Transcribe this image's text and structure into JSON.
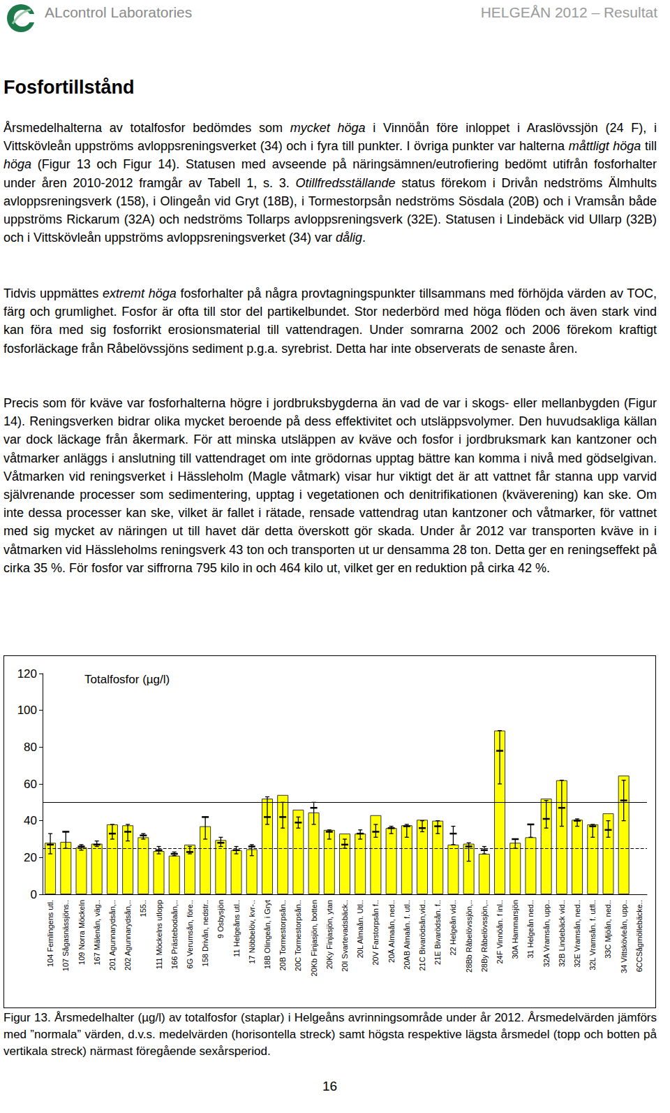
{
  "header": {
    "company": "ALcontrol Laboratories",
    "report": "HELGEÅN 2012 – Resultat"
  },
  "title": "Fosfortillstånd",
  "paragraphs": [
    [
      {
        "text": "Årsmedelhalterna av totalfosfor bedömdes som "
      },
      {
        "text": "mycket höga",
        "style": "italic"
      },
      {
        "text": " i Vinnöån före inloppet i Araslövssjön (24 F), i Vittskövleån uppströms avloppsreningsverket (34) och i fyra till punkter. I övriga punkter var halterna "
      },
      {
        "text": "måttligt höga",
        "style": "italic"
      },
      {
        "text": " till "
      },
      {
        "text": "höga",
        "style": "italic"
      },
      {
        "text": " (Figur 13 och Figur 14). Statusen med avseende på näringsämnen/eutrofiering bedömt utifrån fosforhalter under åren 2010-2012 framgår av Tabell 1, s. 3. "
      },
      {
        "text": "Otillfredsställande",
        "style": "italic"
      },
      {
        "text": " status förekom i Drivån nedströms Älmhults avloppsreningsverk (158), i Olingeån vid Gryt (18B), i Tormestorpsån nedströms Sösdala (20B) och i Vramsån både uppströms Rickarum (32A) och nedströms Tollarps avloppsreningsverk (32E). Statusen i Lindebäck vid Ullarp (32B) och i Vittskövleån uppströms avloppsreningsverket (34) var "
      },
      {
        "text": "dålig",
        "style": "italic"
      },
      {
        "text": "."
      }
    ],
    [
      {
        "text": "Tidvis uppmättes "
      },
      {
        "text": "extremt höga",
        "style": "italic"
      },
      {
        "text": " fosforhalter på några provtagningspunkter tillsammans med förhöjda värden av TOC, färg och grumlighet. Fosfor är ofta till stor del partikelbundet. Stor nederbörd med höga flöden och även stark vind kan föra med sig fosforrikt erosionsmaterial till vattendragen. Under somrarna 2002 och 2006 förekom kraftigt fosforläckage från Råbelövssjöns sediment p.g.a. syrebrist. Detta har inte observerats de senaste åren."
      }
    ],
    [
      {
        "text": "Precis som för kväve var fosforhalterna högre i jordbruksbygderna än vad de var i skogs- eller mellanbygden (Figur 14). Reningsverken bidrar olika mycket beroende på dess effektivitet och utsläppsvolymer. Den huvudsakliga källan var dock läckage från åkermark. För att minska utsläppen av kväve och fosfor i jordbruksmark kan kantzoner och våtmarker anläggs i anslutning till vattendraget om inte grödornas upptag bättre kan komma i nivå med gödselgivan. Våtmarken vid reningsverket i Hässleholm (Magle våtmark) visar hur viktigt det är att vattnet får stanna upp varvid självrenande processer som sedimentering, upptag i vegetationen och denitrifikationen (kväverening) kan ske. Om inte dessa processer kan ske, vilket är fallet i rätade, rensade vattendrag utan kantzoner och våtmarker, för vattnet med sig mycket av näringen ut till havet där detta överskott gör skada. Under år 2012 var transporten kväve in i våtmarken vid Hässleholms reningsverk 43 ton och transporten ut ur densamma 28 ton. Detta ger en reningseffekt på cirka 35 %. För fosfor var siffrorna 795 kilo in och 464 kilo ut, vilket ger en reduktion på cirka 42 %."
      }
    ]
  ],
  "chart_data": {
    "type": "bar",
    "title": "Totalfosfor (µg/l)",
    "categories": [
      "104 Femlingens utl.",
      "107 Sågasnässjöns..",
      "109 Norra Möckeln",
      "167 Mälenån, väg..",
      "201 Agunnarydsån,..",
      "202 Agunnarydsån,..",
      "155..",
      "111 Möckelns utlopp",
      "166 Prästebodaån,..",
      "6G Verumsån, före..",
      "158 Drivån, nedstr..",
      "9 Osbysjön",
      "11 Helgeåns utl..",
      "17 Nöbbelöv, kvr-..",
      "18B Olingeån, i Gryt",
      "20B Tormestorpsån..",
      "20C Tormestorpsån..",
      "20Kb Finjasjön, botten",
      "20Ky Finjasjön, ytan",
      "20I Svartevadsbäck..",
      "20L Almaån. Utl..",
      "20V Farstorpsån f..",
      "20Ä Almaån, ned..",
      "20AB Almaån. f. utl..",
      "21C Bivarödsån,vid..",
      "21E Bivarödsån. f..",
      "22 Helgeån vid..",
      "28Bb Råbelövssjön,..",
      "28By Råbelövssjön,..",
      "24F Vinnöån. f inl..",
      "30A Hammarsjön",
      "31 Helgeån ned..",
      "32A Vramsån, upp..",
      "32B Lindebäck vid..",
      "32E Vramsån, ned..",
      "32L Vramsån. f. utfl..",
      "33C Mjöån, ned..",
      "34 Vittskövleån, upp..",
      "6CCSågmöllebäcke.."
    ],
    "values": [
      28,
      28.5,
      25.5,
      27.5,
      38,
      37.5,
      31,
      23.5,
      21,
      27,
      37,
      29.5,
      24,
      24.5,
      52,
      54,
      46,
      44.5,
      35,
      33,
      33,
      43,
      36,
      37.5,
      40.5,
      40,
      27,
      27.5,
      22,
      89,
      28,
      31,
      52,
      62,
      40.5,
      38,
      44,
      64.5,
      null
    ],
    "normal_mean": [
      27,
      34,
      26,
      27,
      33,
      34,
      32,
      24,
      22,
      23,
      42,
      28,
      24,
      26,
      42,
      42,
      39,
      47,
      34,
      27,
      33,
      34,
      36,
      37,
      36,
      37,
      33,
      26,
      24,
      78,
      30,
      38,
      41,
      47,
      40,
      37,
      35,
      51,
      null
    ],
    "range_min": [
      22,
      25,
      24,
      26,
      30,
      29,
      30,
      22,
      21,
      22,
      30,
      26,
      22,
      21,
      38,
      36,
      36,
      38,
      30,
      25,
      30,
      31,
      33,
      31,
      34,
      33,
      27,
      18,
      22,
      60,
      25,
      31,
      36,
      37,
      37,
      31,
      31,
      40,
      null
    ],
    "range_max": [
      33,
      34,
      27,
      29,
      38,
      38,
      33,
      26,
      23,
      26,
      42,
      31,
      26,
      27,
      53,
      50,
      42,
      50,
      35,
      30,
      35,
      38,
      37,
      38,
      40,
      40,
      37,
      28,
      26,
      89,
      30,
      38,
      51,
      62,
      41,
      38,
      40,
      62,
      null
    ],
    "reference_lines": [
      {
        "value": 50,
        "line_style": "solid"
      },
      {
        "value": 25,
        "line_style": "dashed"
      }
    ],
    "color": "#ffff00",
    "ylim": [
      0,
      120
    ],
    "yticks": [
      0,
      20,
      40,
      60,
      80,
      100,
      120
    ],
    "grid": false
  },
  "caption": "Figur 13. Årsmedelhalter (µg/l) av totalfosfor (staplar) i Helgeåns avrinningsområde under år 2012. Årsmedelvärden jämförs med ”normala” värden, d.v.s. medelvärden (horisontella streck) samt högsta respektive lägsta årsmedel (topp och botten på vertikala streck) närmast föregående sexårsperiod.",
  "page_number": "16"
}
